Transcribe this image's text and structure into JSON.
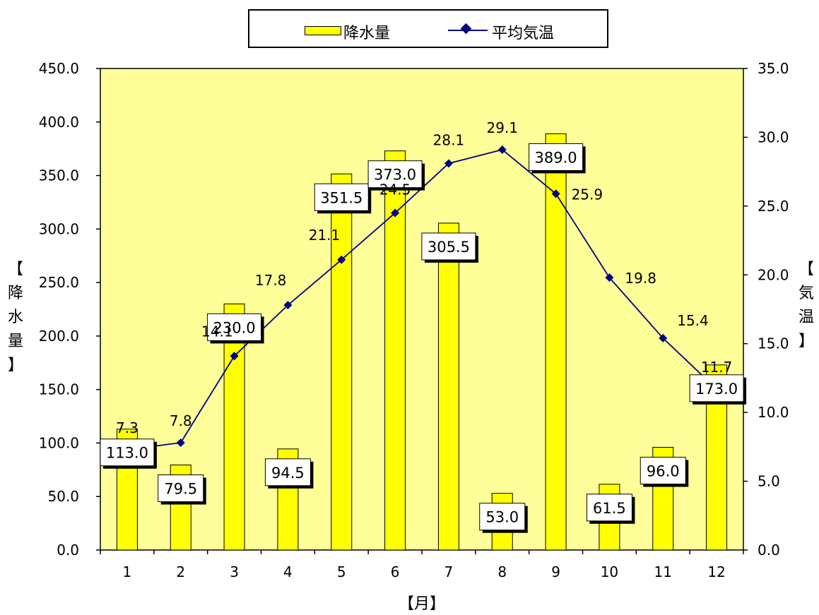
{
  "chart_data": {
    "type": "bar+line",
    "categories": [
      "1",
      "2",
      "3",
      "4",
      "5",
      "6",
      "7",
      "8",
      "9",
      "10",
      "11",
      "12"
    ],
    "series": [
      {
        "name": "降水量",
        "type": "bar",
        "axis": "left",
        "values": [
          113.0,
          79.5,
          230.0,
          94.5,
          351.5,
          373.0,
          305.5,
          53.0,
          389.0,
          61.5,
          96.0,
          173.0
        ],
        "labels": [
          "113.0",
          "79.5",
          "230.0",
          "94.5",
          "351.5",
          "373.0",
          "305.5",
          "53.0",
          "389.0",
          "61.5",
          "96.0",
          "173.0"
        ]
      },
      {
        "name": "平均気温",
        "type": "line",
        "axis": "right",
        "values": [
          7.3,
          7.8,
          14.1,
          17.8,
          21.1,
          24.5,
          28.1,
          29.1,
          25.9,
          19.8,
          15.4,
          11.7
        ],
        "labels": [
          "7.3",
          "7.8",
          "14.1",
          "17.8",
          "21.1",
          "24.5",
          "28.1",
          "29.1",
          "25.9",
          "19.8",
          "15.4",
          "11.7"
        ]
      }
    ],
    "xlabel": "【月】",
    "ylabel": "【降水量】",
    "y2label": "【気温】",
    "ylim": [
      0,
      450
    ],
    "y2lim": [
      0,
      35
    ],
    "yticks": [
      "0.0",
      "50.0",
      "100.0",
      "150.0",
      "200.0",
      "250.0",
      "300.0",
      "350.0",
      "400.0",
      "450.0"
    ],
    "y2ticks": [
      "0.0",
      "5.0",
      "10.0",
      "15.0",
      "20.0",
      "25.0",
      "30.0",
      "35.0"
    ],
    "legend_position": "top-center",
    "grid": false,
    "colors": {
      "plot_bg": "#ffff99",
      "bar": "#ffff00",
      "line": "#000080"
    }
  }
}
